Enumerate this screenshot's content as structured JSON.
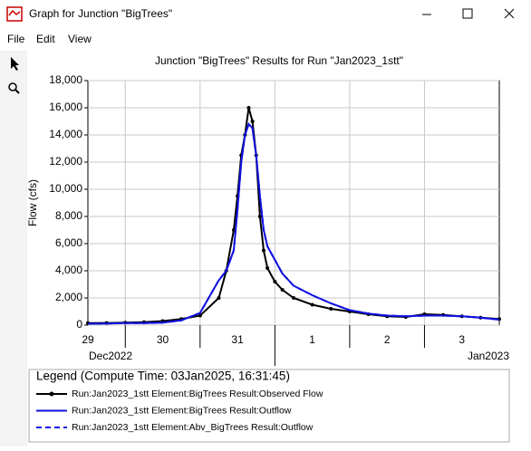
{
  "window": {
    "title": "Graph for Junction \"BigTrees\"",
    "menu": [
      "File",
      "Edit",
      "View"
    ]
  },
  "chart_data": {
    "type": "line",
    "title": "Junction \"BigTrees\" Results for Run \"Jan2023_1stt\"",
    "y_label": "Flow (cfs)",
    "month_labels": [
      "Dec2022",
      "Jan2023"
    ],
    "legend_title": "Legend (Compute Time: 03Jan2025, 16:31:45)",
    "x": [
      0.5,
      0.75,
      1,
      1.25,
      1.5,
      1.75,
      2,
      2.25,
      2.35,
      2.45,
      2.5,
      2.55,
      2.6,
      2.65,
      2.7,
      2.75,
      2.8,
      2.85,
      2.9,
      3,
      3.1,
      3.25,
      3.5,
      3.75,
      4,
      4.25,
      4.5,
      4.75,
      5,
      5.25,
      5.5,
      5.75,
      6
    ],
    "xlim": [
      0.5,
      6
    ],
    "xticks": [
      {
        "value": 0.5,
        "label": "29"
      },
      {
        "value": 1.5,
        "label": "30"
      },
      {
        "value": 2.5,
        "label": "31"
      },
      {
        "value": 3.5,
        "label": "1"
      },
      {
        "value": 4.5,
        "label": "2"
      },
      {
        "value": 5.5,
        "label": "3"
      }
    ],
    "ylim": [
      0,
      18000
    ],
    "yticks": [
      0,
      {
        "value": 2000,
        "label": "2,000"
      },
      {
        "value": 4000,
        "label": "4,000"
      },
      {
        "value": 6000,
        "label": "6,000"
      },
      {
        "value": 8000,
        "label": "8,000"
      },
      {
        "value": 10000,
        "label": "10,000"
      },
      {
        "value": 12000,
        "label": "12,000"
      },
      {
        "value": 14000,
        "label": "14,000"
      },
      {
        "value": 16000,
        "label": "16,000"
      },
      {
        "value": 18000,
        "label": "18,000"
      }
    ],
    "grid": true,
    "series": [
      {
        "name": "Run:Jan2023_1stt Element:BigTrees Result:Observed Flow",
        "color": "#000000",
        "style": "solid-markers",
        "values": [
          150,
          160,
          180,
          220,
          300,
          450,
          700,
          2000,
          4000,
          7000,
          9500,
          12500,
          14000,
          16000,
          15000,
          12500,
          8000,
          5500,
          4200,
          3200,
          2600,
          2000,
          1500,
          1200,
          1000,
          800,
          650,
          600,
          800,
          750,
          650,
          550,
          450
        ]
      },
      {
        "name": "Run:Jan2023_1stt Element:BigTrees Result:Outflow",
        "color": "#1010e0",
        "style": "solid",
        "values": [
          100,
          120,
          150,
          150,
          180,
          350,
          900,
          3300,
          4000,
          5500,
          8500,
          12000,
          14000,
          14800,
          14500,
          12500,
          9500,
          7000,
          5800,
          4800,
          3800,
          2900,
          2200,
          1600,
          1100,
          850,
          700,
          650,
          700,
          700,
          650,
          550,
          400
        ]
      },
      {
        "name": "Run:Jan2023_1stt Element:Abv_BigTrees Result:Outflow",
        "color": "#1010e0",
        "style": "dashed",
        "values": [
          100,
          120,
          150,
          150,
          180,
          350,
          900,
          3300,
          4000,
          5500,
          8500,
          12000,
          14000,
          14800,
          14500,
          12500,
          9500,
          7000,
          5800,
          4800,
          3800,
          2900,
          2200,
          1600,
          1100,
          850,
          700,
          650,
          700,
          700,
          650,
          550,
          400
        ]
      }
    ]
  }
}
